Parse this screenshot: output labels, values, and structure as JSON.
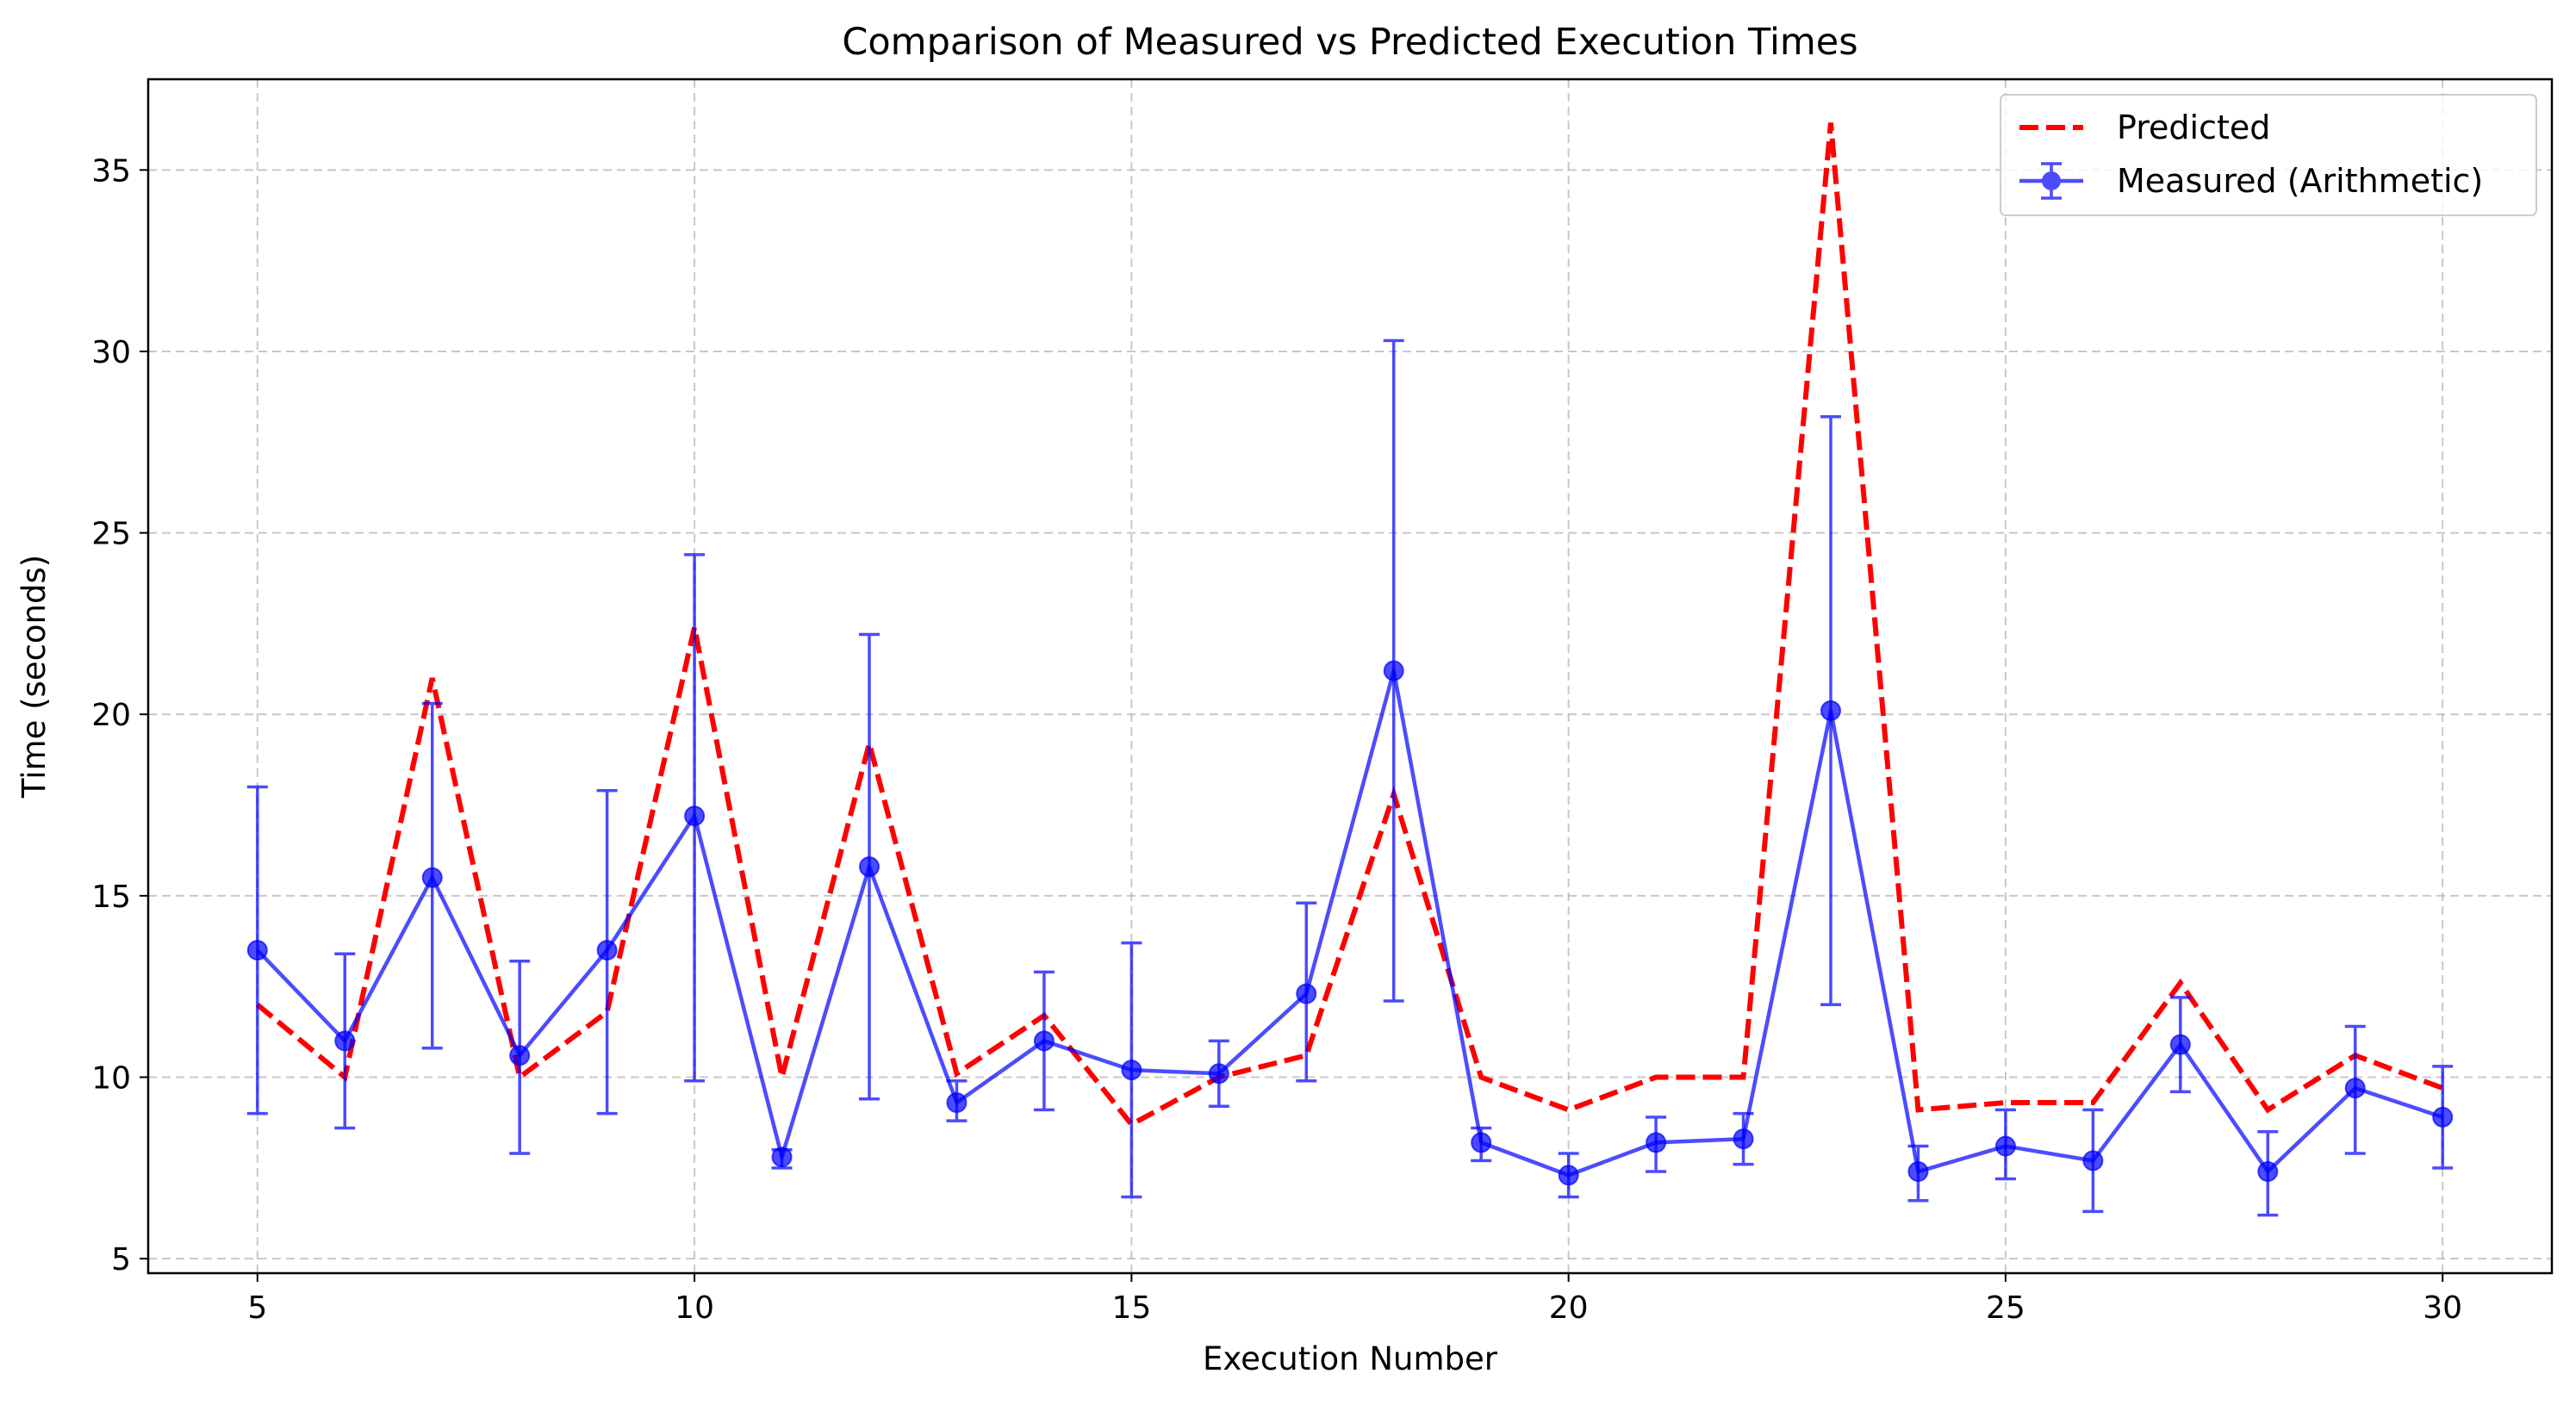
{
  "chart_data": {
    "type": "line",
    "title": "Comparison of Measured vs Predicted Execution Times",
    "xlabel": "Execution Number",
    "ylabel": "Time (seconds)",
    "xlim": [
      3.75,
      31.25
    ],
    "ylim": [
      4.6,
      37.5
    ],
    "xticks": [
      5,
      10,
      15,
      20,
      25,
      30
    ],
    "yticks": [
      5,
      10,
      15,
      20,
      25,
      30,
      35
    ],
    "grid": true,
    "legend_position": "top-right",
    "x": [
      5,
      6,
      7,
      8,
      9,
      10,
      11,
      12,
      13,
      14,
      15,
      16,
      17,
      18,
      19,
      20,
      21,
      22,
      23,
      24,
      25,
      26,
      27,
      28,
      29,
      30
    ],
    "series": [
      {
        "name": "Predicted",
        "style": "dashed",
        "color": "#ff0000",
        "values": [
          12.0,
          10.0,
          21.0,
          10.0,
          11.8,
          22.4,
          10.0,
          19.2,
          10.1,
          11.7,
          8.7,
          10.0,
          10.6,
          17.8,
          10.0,
          9.1,
          10.0,
          10.0,
          36.3,
          9.1,
          9.3,
          9.3,
          12.6,
          9.1,
          10.6,
          9.7
        ]
      },
      {
        "name": "Measured (Arithmetic)",
        "style": "solid-markers-errorbars",
        "color": "#0000ff",
        "values": [
          13.5,
          11.0,
          15.5,
          10.6,
          13.5,
          17.2,
          7.8,
          15.8,
          9.3,
          11.0,
          10.2,
          10.1,
          12.3,
          21.2,
          8.2,
          7.3,
          8.2,
          8.3,
          20.1,
          7.4,
          8.1,
          7.7,
          10.9,
          7.4,
          9.7,
          8.9
        ],
        "err_low": [
          9.0,
          8.6,
          10.8,
          7.9,
          9.0,
          9.9,
          7.5,
          9.4,
          8.8,
          9.1,
          6.7,
          9.2,
          9.9,
          12.1,
          7.7,
          6.7,
          7.4,
          7.6,
          12.0,
          6.6,
          7.2,
          6.3,
          9.6,
          6.2,
          7.9,
          7.5
        ],
        "err_high": [
          18.0,
          13.4,
          20.3,
          13.2,
          17.9,
          24.4,
          8.0,
          22.2,
          9.9,
          12.9,
          13.7,
          11.0,
          14.8,
          30.3,
          8.6,
          7.9,
          8.9,
          9.0,
          28.2,
          8.1,
          9.1,
          9.1,
          12.2,
          8.5,
          11.4,
          10.3
        ]
      }
    ]
  }
}
